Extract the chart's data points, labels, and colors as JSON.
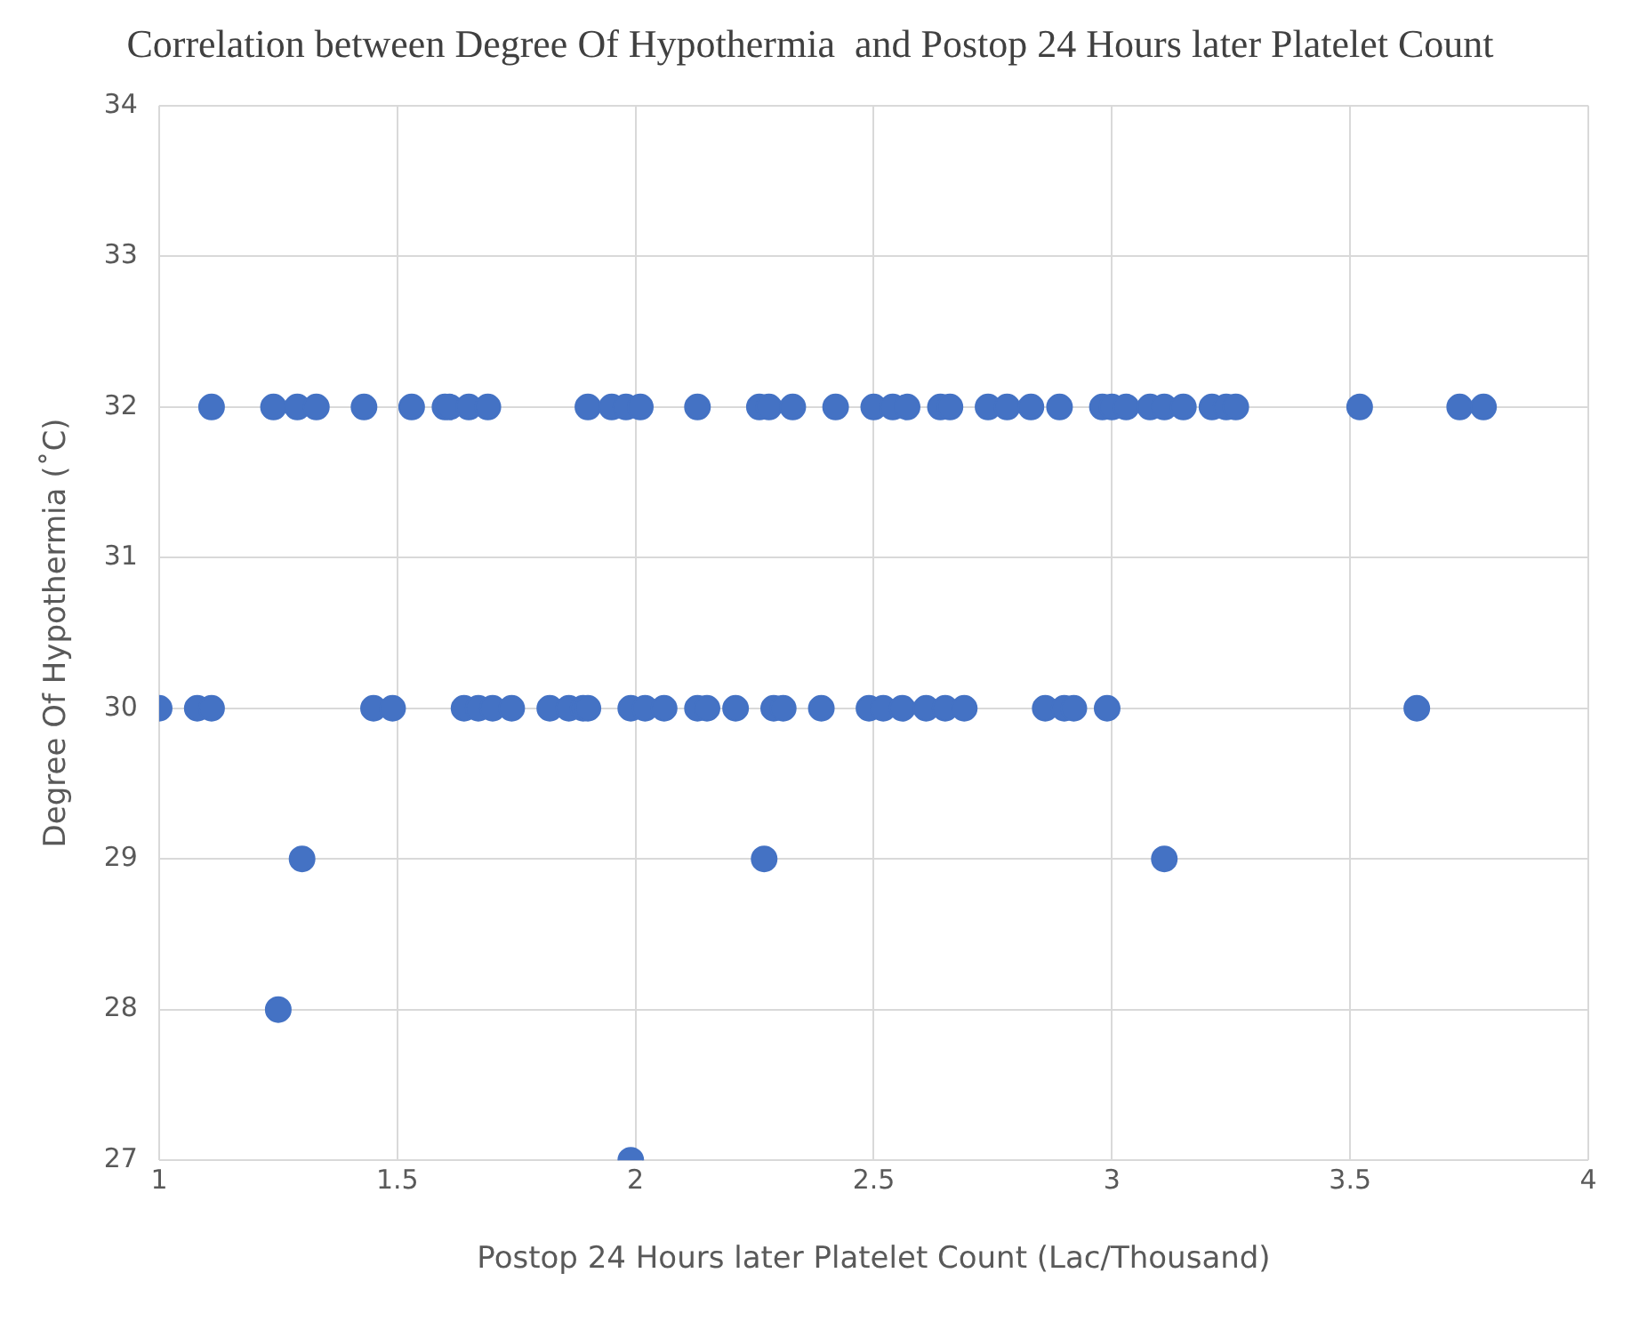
{
  "chart_data": {
    "type": "scatter",
    "title": "Correlation between Degree Of Hypothermia  and Postop 24 Hours later Platelet Count",
    "xlabel": "Postop 24 Hours later Platelet Count (Lac/Thousand)",
    "ylabel": "Degree Of Hypothermia (˚C)",
    "series": [
      {
        "color": "#4472c4",
        "x": [
          1.11,
          1.24,
          1.29,
          1.33,
          1.43,
          1.53,
          1.6,
          1.61,
          1.65,
          1.69,
          1.9,
          1.95,
          1.98,
          2.01,
          2.13,
          2.26,
          2.28,
          2.33,
          2.42,
          2.5,
          2.54,
          2.57,
          2.64,
          2.66,
          2.74,
          2.78,
          2.83,
          2.89,
          2.98,
          3.0,
          3.03,
          3.08,
          3.11,
          3.15,
          3.21,
          3.24,
          3.26,
          3.52,
          3.73,
          3.78,
          1.0,
          1.08,
          1.11,
          1.45,
          1.49,
          1.64,
          1.67,
          1.7,
          1.74,
          1.82,
          1.86,
          1.89,
          1.9,
          1.99,
          2.02,
          2.06,
          2.13,
          2.15,
          2.21,
          2.29,
          2.31,
          2.39,
          2.49,
          2.52,
          2.56,
          2.61,
          2.65,
          2.69,
          2.86,
          2.9,
          2.92,
          2.99,
          3.64,
          1.3,
          2.27,
          3.11,
          1.25,
          1.99
        ],
        "values": [
          32,
          32,
          32,
          32,
          32,
          32,
          32,
          32,
          32,
          32,
          32,
          32,
          32,
          32,
          32,
          32,
          32,
          32,
          32,
          32,
          32,
          32,
          32,
          32,
          32,
          32,
          32,
          32,
          32,
          32,
          32,
          32,
          32,
          32,
          32,
          32,
          32,
          32,
          32,
          32,
          30,
          30,
          30,
          30,
          30,
          30,
          30,
          30,
          30,
          30,
          30,
          30,
          30,
          30,
          30,
          30,
          30,
          30,
          30,
          30,
          30,
          30,
          30,
          30,
          30,
          30,
          30,
          30,
          30,
          30,
          30,
          30,
          30,
          29,
          29,
          29,
          28,
          27
        ]
      }
    ],
    "xlim": [
      1,
      4
    ],
    "xticks": [
      1,
      1.5,
      2,
      2.5,
      3,
      3.5,
      4
    ],
    "ylim": [
      27,
      34
    ],
    "yticks": [
      27,
      28,
      29,
      30,
      31,
      32,
      33,
      34
    ],
    "grid": true,
    "legend": false,
    "marker": "circle"
  }
}
